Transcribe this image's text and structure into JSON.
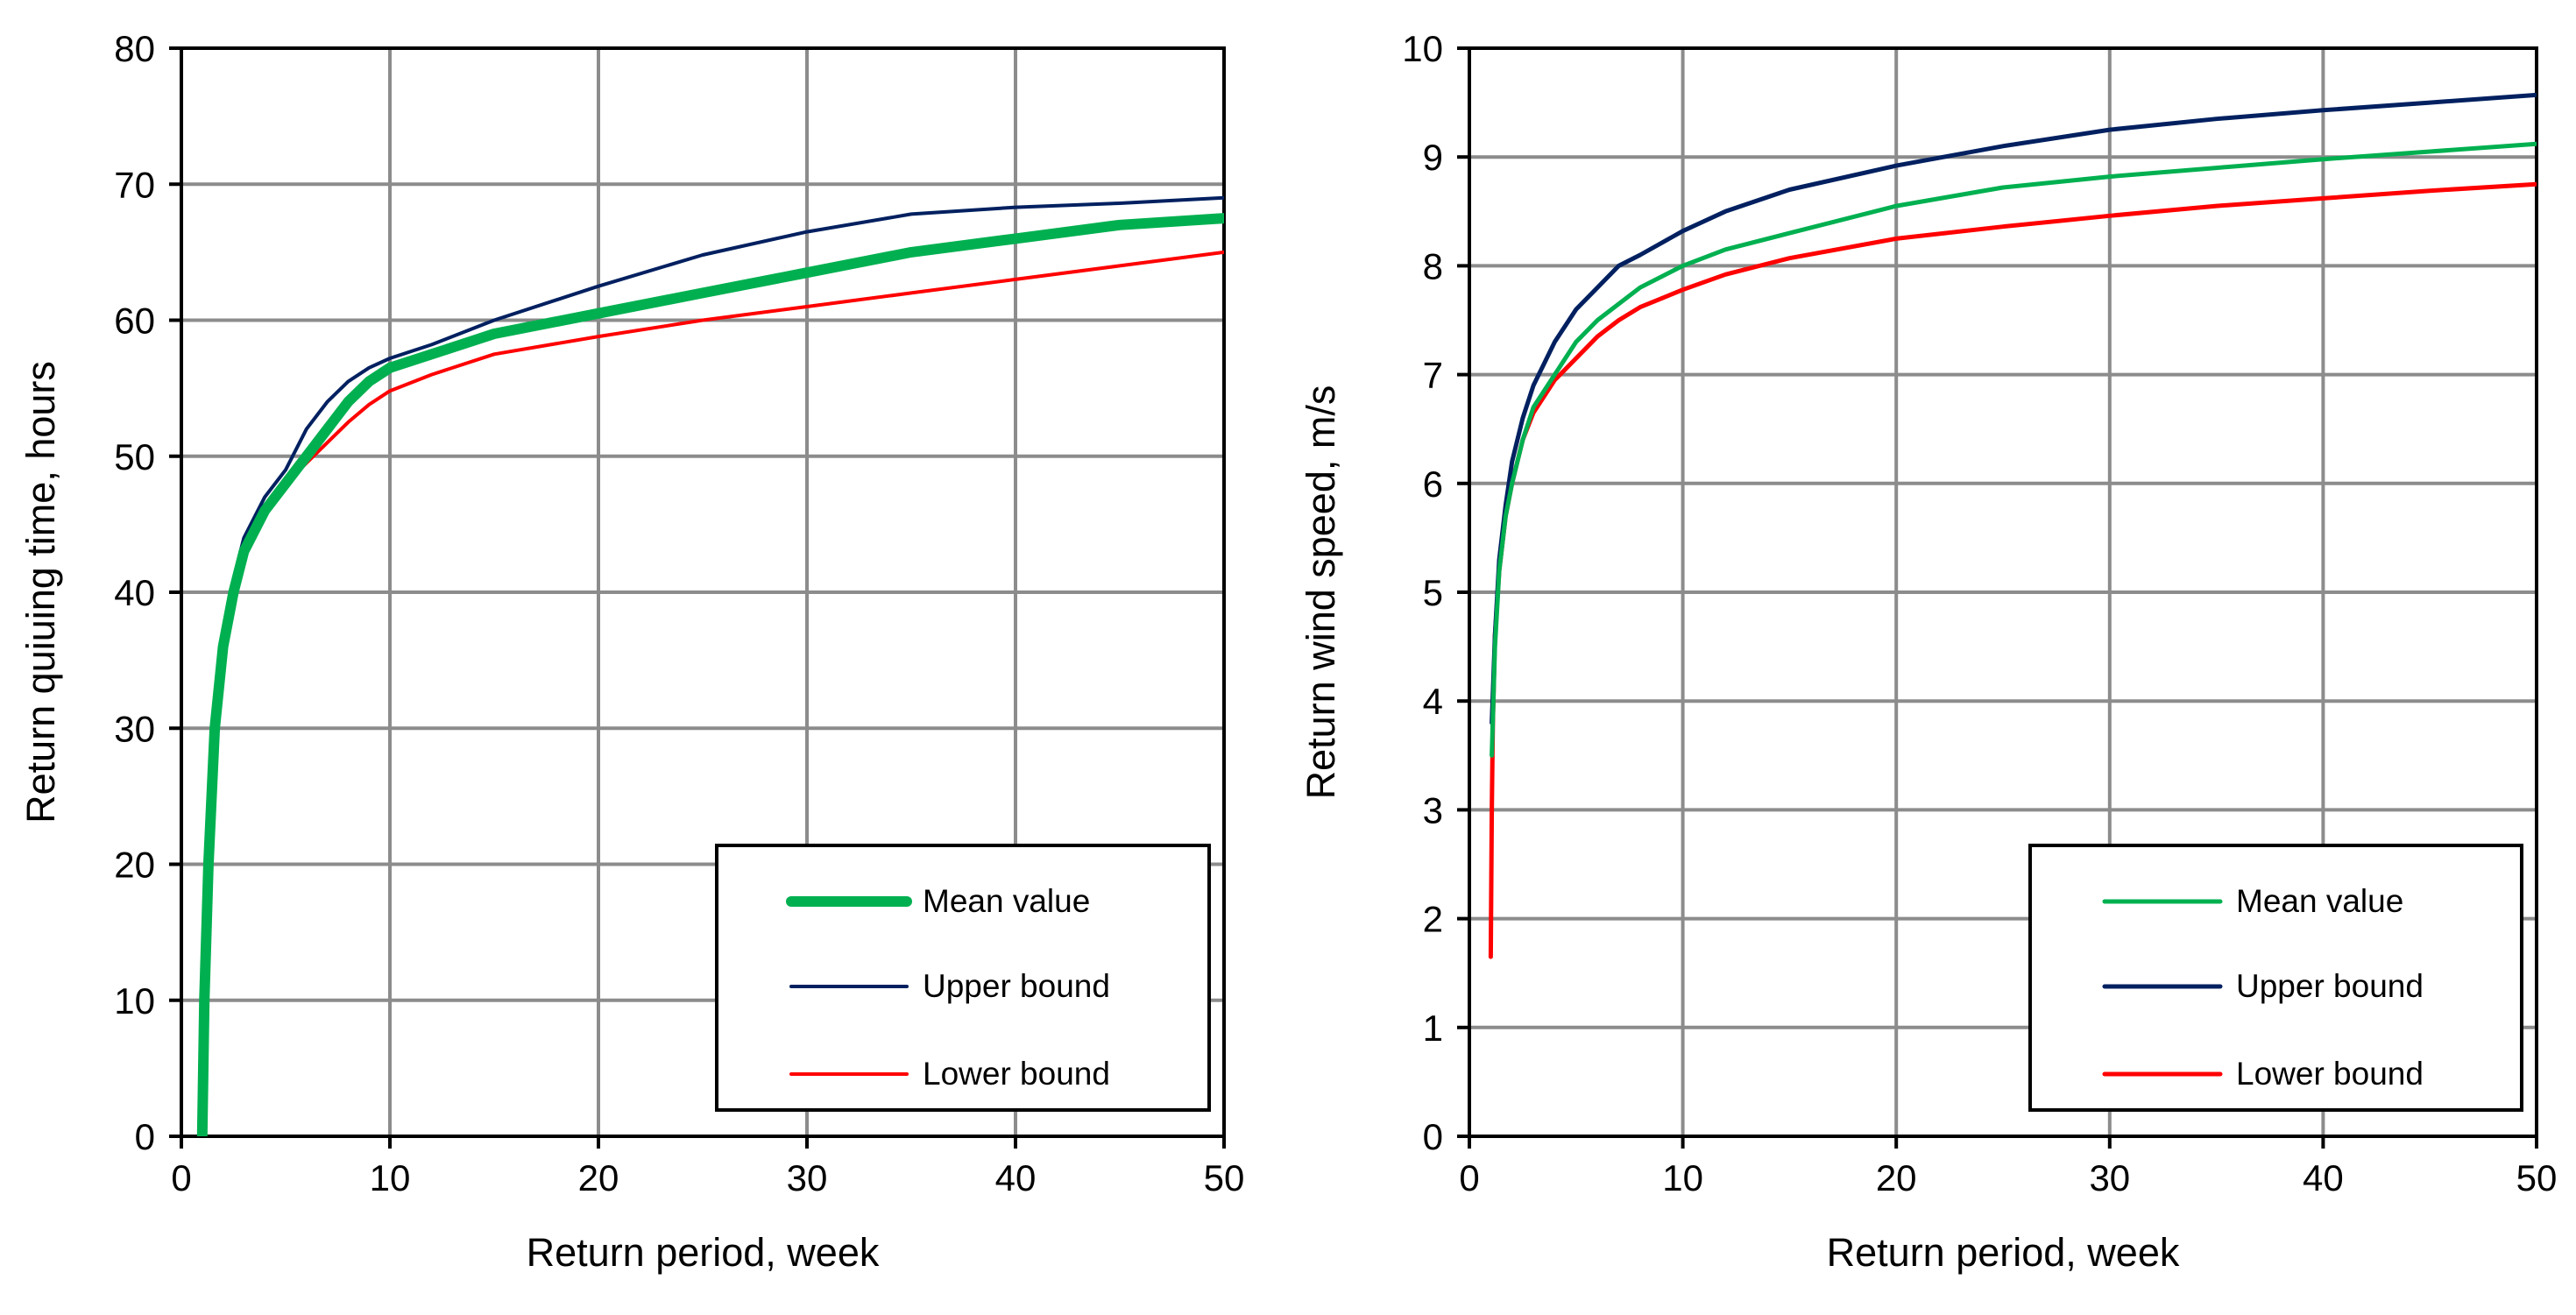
{
  "chart_data": [
    {
      "type": "line",
      "title": "",
      "xlabel": "Return period, week",
      "ylabel": "Return  quiuing time, hours",
      "xlim": [
        0,
        50
      ],
      "ylim": [
        0,
        80
      ],
      "xticks": [
        0,
        10,
        20,
        30,
        40,
        50
      ],
      "yticks": [
        0,
        10,
        20,
        30,
        40,
        50,
        60,
        70,
        80
      ],
      "grid": true,
      "legend_position": "bottom-right",
      "series": [
        {
          "name": "Mean value",
          "color": "#00b050",
          "x": [
            1.0,
            1.1,
            1.3,
            1.6,
            2,
            2.5,
            3,
            4,
            5,
            6,
            7,
            8,
            9,
            10,
            11,
            12,
            13,
            15,
            20,
            25,
            30,
            35,
            40,
            45,
            50
          ],
          "y": [
            0,
            10,
            20,
            30,
            36,
            40,
            43,
            46,
            48,
            50,
            52,
            54,
            55.5,
            56.5,
            57,
            57.5,
            58,
            59,
            60.5,
            62,
            63.5,
            65,
            66,
            67,
            67.5
          ]
        },
        {
          "name": "Upper bound",
          "color": "#002060",
          "x": [
            1.0,
            1.1,
            1.3,
            1.6,
            2,
            2.5,
            3,
            4,
            5,
            6,
            7,
            8,
            9,
            10,
            12,
            15,
            20,
            25,
            30,
            35,
            40,
            45,
            50
          ],
          "y": [
            0,
            10,
            22,
            32,
            37,
            41,
            44,
            47,
            49,
            52,
            54,
            55.5,
            56.5,
            57.2,
            58.2,
            60,
            62.5,
            64.8,
            66.5,
            67.8,
            68.3,
            68.6,
            69
          ]
        },
        {
          "name": "Lower bound",
          "color": "#ff0000",
          "x": [
            1.0,
            1.1,
            1.3,
            1.6,
            2,
            2.5,
            3,
            4,
            5,
            6,
            7,
            8,
            9,
            10,
            12,
            15,
            20,
            25,
            30,
            35,
            40,
            45,
            50
          ],
          "y": [
            0,
            8,
            20,
            30,
            36,
            40,
            43,
            46,
            48,
            49.5,
            51,
            52.5,
            53.8,
            54.8,
            56,
            57.5,
            58.8,
            60,
            61,
            62,
            63,
            64,
            65
          ]
        }
      ]
    },
    {
      "type": "line",
      "title": "",
      "xlabel": "Return period, week",
      "ylabel": "Return wind speed, m/s",
      "xlim": [
        0,
        50
      ],
      "ylim": [
        0,
        10
      ],
      "xticks": [
        0,
        10,
        20,
        30,
        40,
        50
      ],
      "yticks": [
        0,
        1,
        2,
        3,
        4,
        5,
        6,
        7,
        8,
        9,
        10
      ],
      "grid": true,
      "legend_position": "bottom-right",
      "series": [
        {
          "name": "Mean value",
          "color": "#00b050",
          "x": [
            1.05,
            1.2,
            1.4,
            1.7,
            2,
            2.5,
            3,
            4,
            5,
            6,
            7,
            8,
            10,
            12,
            15,
            20,
            25,
            30,
            35,
            40,
            45,
            50
          ],
          "y": [
            3.5,
            4.5,
            5.2,
            5.7,
            6.0,
            6.4,
            6.7,
            7.0,
            7.3,
            7.5,
            7.65,
            7.8,
            8.0,
            8.15,
            8.3,
            8.55,
            8.72,
            8.82,
            8.9,
            8.98,
            9.05,
            9.12
          ]
        },
        {
          "name": "Upper bound",
          "color": "#002060",
          "x": [
            1.05,
            1.2,
            1.4,
            1.7,
            2,
            2.5,
            3,
            4,
            5,
            6,
            7,
            8,
            10,
            12,
            15,
            20,
            25,
            30,
            35,
            40,
            45,
            50
          ],
          "y": [
            3.8,
            4.6,
            5.3,
            5.8,
            6.2,
            6.6,
            6.9,
            7.3,
            7.6,
            7.8,
            8.0,
            8.1,
            8.32,
            8.5,
            8.7,
            8.92,
            9.1,
            9.25,
            9.35,
            9.43,
            9.5,
            9.57
          ]
        },
        {
          "name": "Lower bound",
          "color": "#ff0000",
          "x": [
            1.0,
            1.05,
            1.1,
            1.2,
            1.4,
            1.7,
            2,
            2.5,
            3,
            4,
            5,
            6,
            7,
            8,
            10,
            12,
            15,
            20,
            25,
            30,
            35,
            40,
            45,
            50
          ],
          "y": [
            1.65,
            3.0,
            3.8,
            4.6,
            5.2,
            5.7,
            6.0,
            6.4,
            6.65,
            6.95,
            7.15,
            7.35,
            7.5,
            7.62,
            7.78,
            7.92,
            8.07,
            8.25,
            8.36,
            8.46,
            8.55,
            8.62,
            8.69,
            8.75
          ]
        }
      ]
    }
  ]
}
